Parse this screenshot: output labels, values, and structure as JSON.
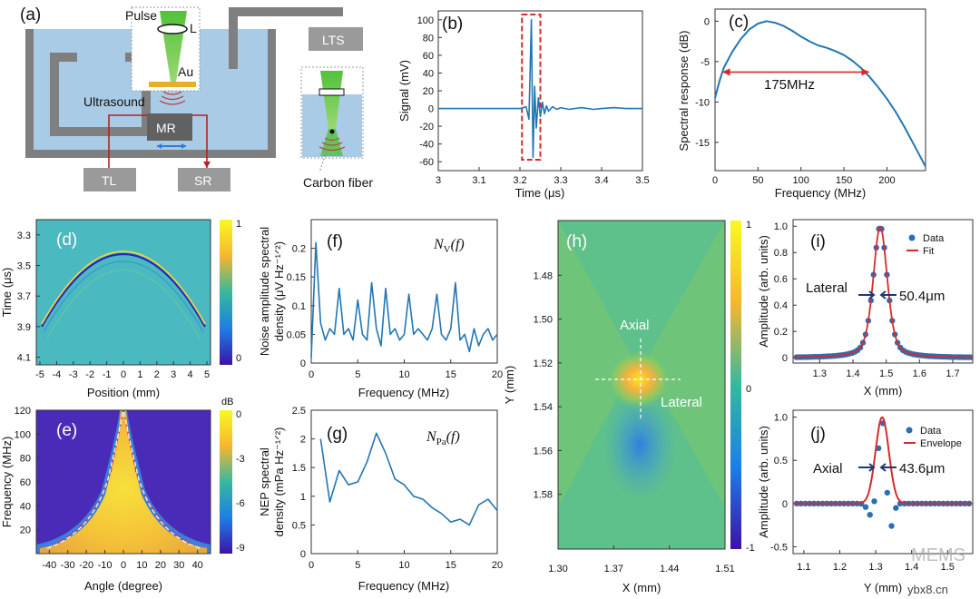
{
  "figure": {
    "panels": {
      "a": "(a)",
      "b": "(b)",
      "c": "(c)",
      "d": "(d)",
      "e": "(e)",
      "f": "(f)",
      "g": "(g)",
      "h": "(h)",
      "i": "(i)",
      "j": "(j)"
    },
    "setup": {
      "pulse": "Pulse",
      "lens": "L",
      "au": "Au",
      "ultrasound": "Ultrasound",
      "mr": "MR",
      "tl": "TL",
      "sr": "SR",
      "lts": "LTS",
      "carbon_fiber": "Carbon fiber"
    },
    "watermark": {
      "brand": "MEMS",
      "site": "ybx8.cn"
    }
  },
  "chart_data": [
    {
      "id": "b",
      "type": "line",
      "xlabel": "Time (μs)",
      "ylabel": "Signal (mV)",
      "xlim": [
        3,
        3.5
      ],
      "ylim": [
        -70,
        110
      ],
      "xticks": [
        "3",
        "3.1",
        "3.2",
        "3.3",
        "3.4",
        "3.5"
      ],
      "yticks": [
        "100",
        "80",
        "60",
        "40",
        "20",
        "0",
        "-20",
        "-40",
        "-60"
      ],
      "x": [
        3.0,
        3.1,
        3.2,
        3.215,
        3.222,
        3.228,
        3.232,
        3.236,
        3.24,
        3.245,
        3.25,
        3.255,
        3.26,
        3.265,
        3.27,
        3.28,
        3.29,
        3.3,
        3.32,
        3.35,
        3.38,
        3.4,
        3.43,
        3.46,
        3.5
      ],
      "y": [
        0,
        0,
        0,
        2,
        -12,
        100,
        -55,
        25,
        -22,
        12,
        -9,
        7,
        -6,
        3,
        -3,
        2,
        -1,
        1,
        -1,
        1,
        -1,
        0,
        1,
        0,
        0
      ],
      "highlight_x": [
        3.205,
        3.25
      ]
    },
    {
      "id": "c",
      "type": "line",
      "xlabel": "Frequency (MHz)",
      "ylabel": "Spectral response (dB)",
      "xlim": [
        0,
        245
      ],
      "ylim": [
        -18.5,
        1.5
      ],
      "xticks": [
        "0",
        "50",
        "100",
        "150",
        "200"
      ],
      "yticks": [
        "0",
        "-5",
        "-10",
        "-15"
      ],
      "x": [
        0,
        5,
        10,
        20,
        30,
        40,
        50,
        60,
        70,
        80,
        90,
        100,
        110,
        120,
        130,
        140,
        150,
        160,
        170,
        180,
        190,
        200,
        210,
        220,
        230,
        240,
        245
      ],
      "y": [
        -9.5,
        -7.5,
        -5.8,
        -3.8,
        -2.2,
        -1.0,
        -0.3,
        0.0,
        -0.2,
        -0.6,
        -1.2,
        -1.9,
        -2.5,
        -3.0,
        -3.3,
        -3.7,
        -4.2,
        -4.9,
        -5.8,
        -6.9,
        -8.2,
        -9.6,
        -11.2,
        -13.0,
        -15.0,
        -17.0,
        -18.0
      ],
      "bandwidth_marker": [
        8,
        180
      ],
      "annotation": "175MHz"
    },
    {
      "id": "d",
      "type": "heatmap",
      "xlabel": "Position (mm)",
      "ylabel": "Time (μs)",
      "xlim": [
        -5,
        5
      ],
      "ylim": [
        3.2,
        4.15
      ],
      "xticks": [
        "-5",
        "-4",
        "-3",
        "-2",
        "-1",
        "0",
        "1",
        "2",
        "3",
        "4",
        "5"
      ],
      "yticks": [
        "3.3",
        "3.5",
        "3.7",
        "3.9",
        "4.1"
      ],
      "colorbar_ticks": [
        "1",
        "0"
      ]
    },
    {
      "id": "e",
      "type": "heatmap",
      "xlabel": "Angle (degree)",
      "ylabel": "Frequency (MHz)",
      "xlim": [
        -47,
        47
      ],
      "ylim": [
        0,
        120
      ],
      "xticks": [
        "-40",
        "-30",
        "-20",
        "-10",
        "0",
        "10",
        "20",
        "30",
        "40"
      ],
      "yticks": [
        "120",
        "100",
        "80",
        "60",
        "40",
        "20"
      ],
      "colorbar_title": "dB",
      "colorbar_ticks": [
        "0",
        "-3",
        "-6",
        "-9"
      ]
    },
    {
      "id": "f",
      "type": "line",
      "xlabel": "Frequency (MHz)",
      "ylabel": "Noise amplitude spectral density (μV Hz⁻¹ᐟ²)",
      "ylabel_lines": [
        "Noise amplitude spectral",
        "density (μV Hz⁻¹ᐟ²)"
      ],
      "legend_main": "N",
      "legend_sub": "V",
      "legend_arg": "(f)",
      "xlim": [
        0,
        20
      ],
      "ylim": [
        0,
        0.25
      ],
      "xticks": [
        "0",
        "5",
        "10",
        "15",
        "20"
      ],
      "yticks": [
        "0.2",
        "0.15",
        "0.1",
        "0.05",
        "0"
      ],
      "x": [
        0,
        0.5,
        1,
        1.5,
        2,
        2.5,
        3,
        3.5,
        4,
        4.5,
        5,
        5.5,
        6,
        6.5,
        7,
        7.5,
        8,
        8.5,
        9,
        9.5,
        10,
        10.5,
        11,
        11.5,
        12,
        12.5,
        13,
        13.5,
        14,
        14.5,
        15,
        15.5,
        16,
        16.5,
        17,
        17.5,
        18,
        18.5,
        19,
        19.5,
        20
      ],
      "y": [
        0.01,
        0.21,
        0.07,
        0.04,
        0.06,
        0.05,
        0.13,
        0.05,
        0.06,
        0.04,
        0.11,
        0.05,
        0.04,
        0.14,
        0.06,
        0.03,
        0.13,
        0.05,
        0.06,
        0.04,
        0.05,
        0.12,
        0.05,
        0.06,
        0.05,
        0.04,
        0.06,
        0.12,
        0.05,
        0.04,
        0.06,
        0.14,
        0.04,
        0.05,
        0.02,
        0.06,
        0.03,
        0.05,
        0.06,
        0.04,
        0.05
      ]
    },
    {
      "id": "g",
      "type": "line",
      "xlabel": "Frequency (MHz)",
      "ylabel": "NEP spectral density (mPa Hz⁻¹ᐟ²)",
      "ylabel_lines": [
        "NEP spectral",
        "density (mPa Hz⁻¹ᐟ²)"
      ],
      "legend_main": "N",
      "legend_sub": "Pa",
      "legend_arg": "(f)",
      "xlim": [
        0,
        20
      ],
      "ylim": [
        0,
        2.5
      ],
      "xticks": [
        "0",
        "5",
        "10",
        "15",
        "20"
      ],
      "yticks": [
        "2.5",
        "2",
        "1.5",
        "1",
        "0.5",
        "0"
      ],
      "x": [
        1,
        2,
        3,
        4,
        5,
        6,
        7,
        8,
        9,
        10,
        11,
        12,
        13,
        14,
        15,
        16,
        17,
        18,
        19,
        20
      ],
      "y": [
        2.0,
        0.9,
        1.45,
        1.2,
        1.25,
        1.6,
        2.1,
        1.75,
        1.3,
        1.2,
        1.0,
        0.95,
        0.8,
        0.7,
        0.55,
        0.6,
        0.5,
        0.85,
        0.95,
        0.75
      ]
    },
    {
      "id": "h",
      "type": "heatmap",
      "xlabel": "X (mm)",
      "ylabel": "Y (mm)",
      "xlim": [
        1.3,
        1.51
      ],
      "ylim": [
        1.455,
        1.605
      ],
      "xticks": [
        "1.30",
        "1.37",
        "1.44",
        "1.51"
      ],
      "yticks": [
        "1.48",
        "1.50",
        "1.52",
        "1.54",
        "1.56",
        "1.58"
      ],
      "colorbar_ticks": [
        "1",
        "0",
        "-1"
      ],
      "labels": {
        "axial": "Axial",
        "lateral": "Lateral"
      }
    },
    {
      "id": "i",
      "type": "scatter",
      "xlabel": "X (mm)",
      "ylabel": "Amplitude (arb. units)",
      "xlim": [
        1.22,
        1.76
      ],
      "ylim": [
        -0.04,
        1.05
      ],
      "xticks": [
        "1.3",
        "1.4",
        "1.5",
        "1.6",
        "1.7"
      ],
      "yticks": [
        "1.0",
        "0.8",
        "0.6",
        "0.4",
        "0.2",
        "0"
      ],
      "legend": [
        "Data",
        "Fit"
      ],
      "fwhm_label": "Lateral",
      "fwhm_value": "50.4μm",
      "peak_center": 1.482,
      "fwhm": 0.0504
    },
    {
      "id": "j",
      "type": "scatter",
      "xlabel": "Y (mm)",
      "ylabel": "Amplitude (arb. units)",
      "xlim": [
        1.07,
        1.57
      ],
      "ylim": [
        -0.58,
        1.08
      ],
      "xticks": [
        "1.1",
        "1.2",
        "1.3",
        "1.4",
        "1.5"
      ],
      "yticks": [
        "1.0",
        "0.5",
        "0",
        "-0.5"
      ],
      "legend": [
        "Data",
        "Envelope"
      ],
      "fwhm_label": "Axial",
      "fwhm_value": "43.6μm",
      "peak_center": 1.318,
      "fwhm": 0.0436
    }
  ]
}
